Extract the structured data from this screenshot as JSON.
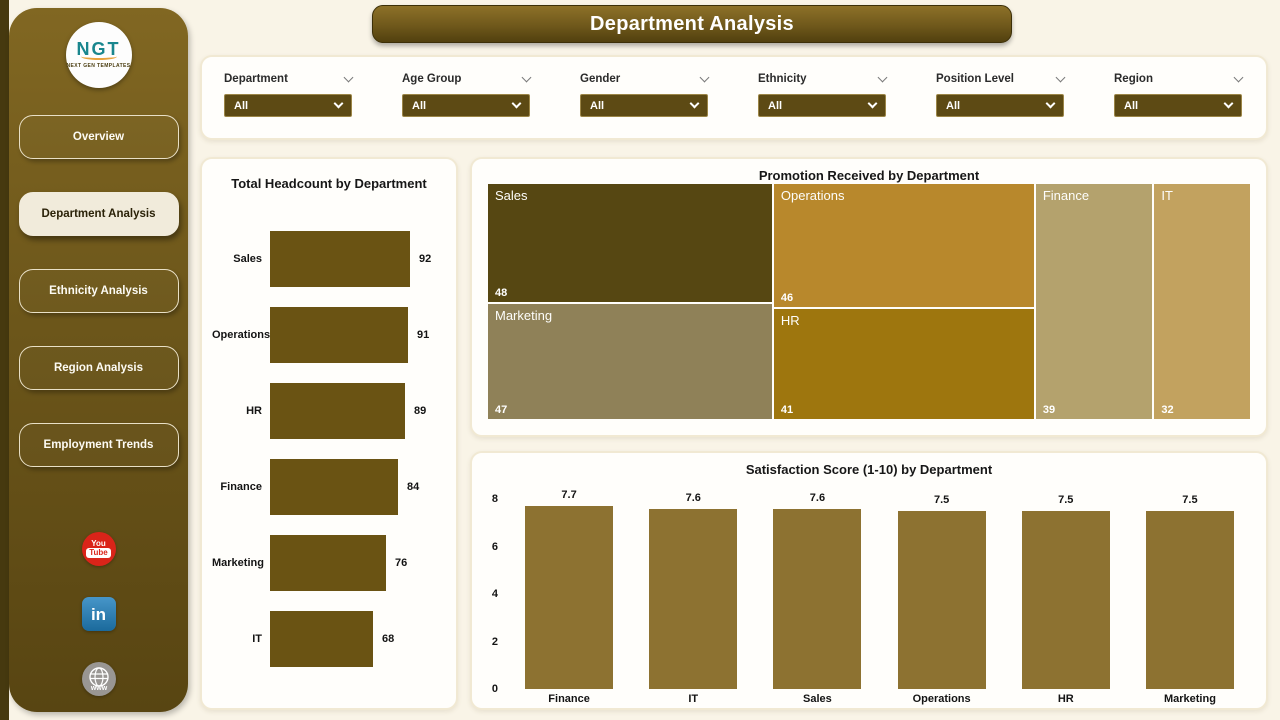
{
  "app": {
    "title": "Department Analysis"
  },
  "colors": {
    "page_bg": "#f9f4e7",
    "sidebar_top": "#816722",
    "sidebar_bottom": "#584512",
    "banner_gold": "#6f581b",
    "dropdown_bg": "#5d4a14",
    "headcount_bar": "#6a5313",
    "satisfaction_bar": "#8d7231",
    "youtube_red": "#da2419",
    "linkedin_blue": "#1b6a9c",
    "logo_teal": "#19868e"
  },
  "sidebar": {
    "logo": {
      "text": "NGT",
      "subtext": "NEXT GEN TEMPLATES"
    },
    "items": [
      {
        "label": "Overview",
        "active": false
      },
      {
        "label": "Department Analysis",
        "active": true
      },
      {
        "label": "Ethnicity Analysis",
        "active": false
      },
      {
        "label": "Region Analysis",
        "active": false
      },
      {
        "label": "Employment Trends",
        "active": false
      }
    ],
    "socials": [
      {
        "type": "youtube",
        "text_top": "You",
        "text_bottom": "Tube"
      },
      {
        "type": "linkedin",
        "text": "in"
      },
      {
        "type": "website",
        "text": "www"
      }
    ]
  },
  "filters": {
    "slicers": [
      {
        "label": "Department",
        "value": "All"
      },
      {
        "label": "Age Group",
        "value": "All"
      },
      {
        "label": "Gender",
        "value": "All"
      },
      {
        "label": "Ethnicity",
        "value": "All"
      },
      {
        "label": "Position Level",
        "value": "All"
      },
      {
        "label": "Region",
        "value": "All"
      }
    ]
  },
  "chart_data": [
    {
      "type": "bar",
      "orientation": "horizontal",
      "title": "Total Headcount by Department",
      "categories": [
        "Sales",
        "Operations",
        "HR",
        "Finance",
        "Marketing",
        "IT"
      ],
      "values": [
        92,
        91,
        89,
        84,
        76,
        68
      ],
      "bar_color": "#6a5313",
      "data_labels": true,
      "grid": false
    },
    {
      "type": "treemap",
      "title": "Promotion Received by Department",
      "items": [
        {
          "label": "Sales",
          "value": 48,
          "color": "#564712"
        },
        {
          "label": "Operations",
          "value": 46,
          "color": "#b8882c"
        },
        {
          "label": "Marketing",
          "value": 47,
          "color": "#8f8158"
        },
        {
          "label": "HR",
          "value": 41,
          "color": "#9e760e"
        },
        {
          "label": "Finance",
          "value": 39,
          "color": "#b4a26d"
        },
        {
          "label": "IT",
          "value": 32,
          "color": "#c2a25f"
        }
      ]
    },
    {
      "type": "bar",
      "orientation": "vertical",
      "title": "Satisfaction Score (1-10) by Department",
      "categories": [
        "Finance",
        "IT",
        "Sales",
        "Operations",
        "HR",
        "Marketing"
      ],
      "values": [
        7.7,
        7.6,
        7.6,
        7.5,
        7.5,
        7.5
      ],
      "ylim": [
        0,
        8
      ],
      "yticks": [
        0,
        2,
        4,
        6,
        8
      ],
      "bar_color": "#8d7231",
      "data_labels": true,
      "grid": false
    }
  ]
}
